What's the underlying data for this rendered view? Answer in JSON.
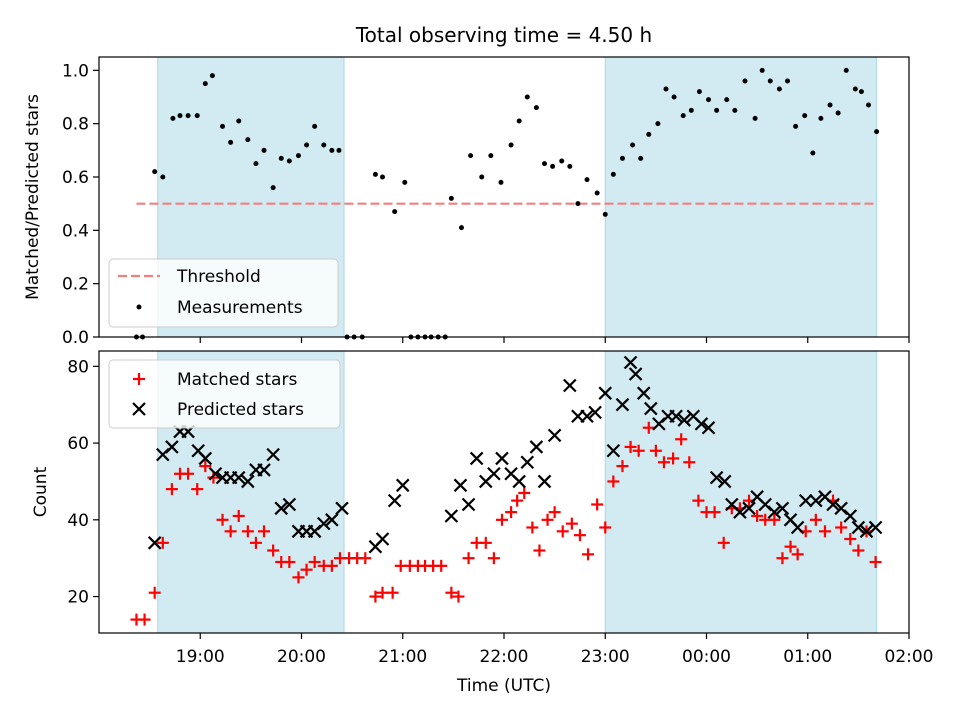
{
  "title": "Total observing time = 4.50 h",
  "colors": {
    "shade": "#add8e6",
    "threshold": "#f08080",
    "measurement": "#000000",
    "matched": "#ff0000",
    "predicted": "#000000"
  },
  "chart_data": [
    {
      "type": "scatter",
      "panel": "top",
      "xlabel": "",
      "ylabel": "Matched/Predicted stars",
      "ylim": [
        0,
        1.05
      ],
      "yticks": [
        "0.0",
        "0.2",
        "0.4",
        "0.6",
        "0.8",
        "1.0"
      ],
      "ytick_values": [
        0,
        0.2,
        0.4,
        0.6,
        0.8,
        1.0
      ],
      "xlim_hours": [
        18.0,
        26.0
      ],
      "shaded_spans": [
        [
          18.58,
          20.42
        ],
        [
          23.0,
          25.68
        ]
      ],
      "legend": {
        "position": "lower-left",
        "entries": [
          "Threshold",
          "Measurements"
        ]
      },
      "threshold": {
        "name": "Threshold",
        "value": 0.5,
        "x_range": [
          18.37,
          25.68
        ],
        "style": "dashed"
      },
      "series": [
        {
          "name": "Measurements",
          "marker": "dot",
          "x": [
            18.37,
            18.43,
            18.55,
            18.63,
            18.73,
            18.8,
            18.88,
            18.97,
            19.05,
            19.12,
            19.22,
            19.3,
            19.38,
            19.47,
            19.55,
            19.63,
            19.72,
            19.8,
            19.88,
            19.97,
            20.05,
            20.13,
            20.22,
            20.3,
            20.37,
            20.45,
            20.52,
            20.6,
            20.73,
            20.8,
            20.92,
            21.02,
            21.08,
            21.15,
            21.22,
            21.28,
            21.35,
            21.42,
            21.48,
            21.58,
            21.67,
            21.78,
            21.87,
            21.97,
            22.07,
            22.15,
            22.23,
            22.32,
            22.4,
            22.48,
            22.57,
            22.65,
            22.73,
            22.82,
            22.92,
            23.0,
            23.08,
            23.17,
            23.27,
            23.35,
            23.43,
            23.52,
            23.6,
            23.68,
            23.77,
            23.85,
            23.93,
            24.02,
            24.1,
            24.2,
            24.28,
            24.38,
            24.48,
            24.55,
            24.63,
            24.72,
            24.8,
            24.88,
            24.97,
            25.05,
            25.13,
            25.22,
            25.3,
            25.38,
            25.47,
            25.53,
            25.6,
            25.68
          ],
          "y": [
            0.0,
            0.0,
            0.62,
            0.6,
            0.82,
            0.83,
            0.83,
            0.83,
            0.95,
            0.98,
            0.79,
            0.73,
            0.81,
            0.74,
            0.65,
            0.7,
            0.56,
            0.67,
            0.66,
            0.68,
            0.72,
            0.79,
            0.72,
            0.7,
            0.7,
            0.0,
            0.0,
            0.0,
            0.61,
            0.6,
            0.47,
            0.58,
            0.0,
            0.0,
            0.0,
            0.0,
            0.0,
            0.0,
            0.52,
            0.41,
            0.68,
            0.6,
            0.68,
            0.58,
            0.72,
            0.81,
            0.9,
            0.86,
            0.65,
            0.64,
            0.66,
            0.64,
            0.5,
            0.59,
            0.54,
            0.46,
            0.61,
            0.67,
            0.72,
            0.67,
            0.76,
            0.8,
            0.93,
            0.9,
            0.83,
            0.85,
            0.92,
            0.89,
            0.85,
            0.89,
            0.85,
            0.96,
            0.82,
            1.0,
            0.96,
            0.93,
            0.96,
            0.79,
            0.83,
            0.69,
            0.82,
            0.87,
            0.84,
            1.0,
            0.93,
            0.92,
            0.87,
            0.77
          ]
        }
      ]
    },
    {
      "type": "scatter",
      "panel": "bottom",
      "xlabel": "Time (UTC)",
      "ylabel": "Count",
      "ylim": [
        10.5,
        84
      ],
      "yticks": [
        "20",
        "40",
        "60",
        "80"
      ],
      "ytick_values": [
        20,
        40,
        60,
        80
      ],
      "xlim_hours": [
        18.0,
        26.0
      ],
      "xticks": [
        "19:00",
        "20:00",
        "21:00",
        "22:00",
        "23:00",
        "00:00",
        "01:00",
        "02:00"
      ],
      "xtick_values": [
        19,
        20,
        21,
        22,
        23,
        24,
        25,
        26
      ],
      "shaded_spans": [
        [
          18.58,
          20.42
        ],
        [
          23.0,
          25.68
        ]
      ],
      "legend": {
        "position": "upper-left",
        "entries": [
          "Matched stars",
          "Predicted stars"
        ]
      },
      "series": [
        {
          "name": "Matched stars",
          "marker": "plus",
          "x": [
            18.37,
            18.45,
            18.55,
            18.63,
            18.72,
            18.8,
            18.88,
            18.97,
            19.05,
            19.13,
            19.22,
            19.3,
            19.38,
            19.47,
            19.55,
            19.63,
            19.72,
            19.8,
            19.88,
            19.97,
            20.05,
            20.13,
            20.22,
            20.3,
            20.38,
            20.47,
            20.55,
            20.63,
            20.73,
            20.8,
            20.9,
            20.98,
            21.07,
            21.15,
            21.22,
            21.3,
            21.38,
            21.48,
            21.55,
            21.65,
            21.73,
            21.82,
            21.9,
            21.98,
            22.07,
            22.13,
            22.2,
            22.28,
            22.35,
            22.43,
            22.5,
            22.58,
            22.67,
            22.75,
            22.83,
            22.92,
            23.0,
            23.08,
            23.17,
            23.25,
            23.33,
            23.43,
            23.5,
            23.58,
            23.67,
            23.75,
            23.83,
            23.92,
            24.0,
            24.08,
            24.17,
            24.25,
            24.33,
            24.42,
            24.5,
            24.58,
            24.67,
            24.75,
            24.83,
            24.9,
            24.98,
            25.08,
            25.17,
            25.25,
            25.33,
            25.42,
            25.5,
            25.58,
            25.67
          ],
          "y": [
            14,
            14,
            21,
            34,
            48,
            52,
            52,
            48,
            54,
            51,
            40,
            37,
            41,
            37,
            34,
            37,
            32,
            29,
            29,
            25,
            27,
            29,
            28,
            28,
            30,
            30,
            30,
            30,
            20,
            21,
            21,
            28,
            28,
            28,
            28,
            28,
            28,
            21,
            20,
            30,
            34,
            34,
            30,
            40,
            42,
            45,
            47,
            38,
            32,
            40,
            42,
            37,
            39,
            36,
            31,
            44,
            38,
            50,
            54,
            59,
            58,
            64,
            58,
            55,
            56,
            61,
            55,
            45,
            42,
            42,
            34,
            43,
            43,
            45,
            41,
            40,
            40,
            30,
            33,
            31,
            37,
            40,
            37,
            45,
            38,
            35,
            32,
            37,
            29
          ]
        },
        {
          "name": "Predicted stars",
          "marker": "x",
          "x": [
            18.55,
            18.63,
            18.72,
            18.8,
            18.88,
            18.98,
            19.05,
            19.15,
            19.22,
            19.3,
            19.38,
            19.47,
            19.55,
            19.63,
            19.72,
            19.8,
            19.88,
            19.97,
            20.05,
            20.13,
            20.22,
            20.3,
            20.4,
            20.73,
            20.8,
            20.92,
            21.0,
            21.48,
            21.57,
            21.65,
            21.73,
            21.82,
            21.9,
            21.98,
            22.07,
            22.15,
            22.23,
            22.32,
            22.4,
            22.5,
            22.65,
            22.73,
            22.82,
            22.9,
            23.0,
            23.08,
            23.17,
            23.25,
            23.3,
            23.38,
            23.45,
            23.53,
            23.62,
            23.7,
            23.78,
            23.87,
            23.95,
            24.02,
            24.1,
            24.18,
            24.25,
            24.33,
            24.42,
            24.5,
            24.58,
            24.67,
            24.75,
            24.83,
            24.9,
            24.98,
            25.08,
            25.17,
            25.25,
            25.33,
            25.42,
            25.5,
            25.58,
            25.67
          ],
          "y": [
            34,
            57,
            59,
            63,
            63,
            58,
            56,
            52,
            51,
            51,
            51,
            50,
            53,
            53,
            57,
            43,
            44,
            37,
            37,
            37,
            39,
            40,
            43,
            33,
            35,
            45,
            49,
            41,
            49,
            44,
            56,
            50,
            52,
            56,
            52,
            50,
            55,
            59,
            50,
            62,
            75,
            67,
            67,
            68,
            73,
            58,
            70,
            81,
            78,
            73,
            69,
            65,
            67,
            67,
            66,
            67,
            65,
            64,
            51,
            50,
            44,
            42,
            43,
            46,
            44,
            42,
            43,
            40,
            38,
            45,
            45,
            46,
            44,
            43,
            41,
            38,
            37,
            38
          ]
        }
      ]
    }
  ]
}
